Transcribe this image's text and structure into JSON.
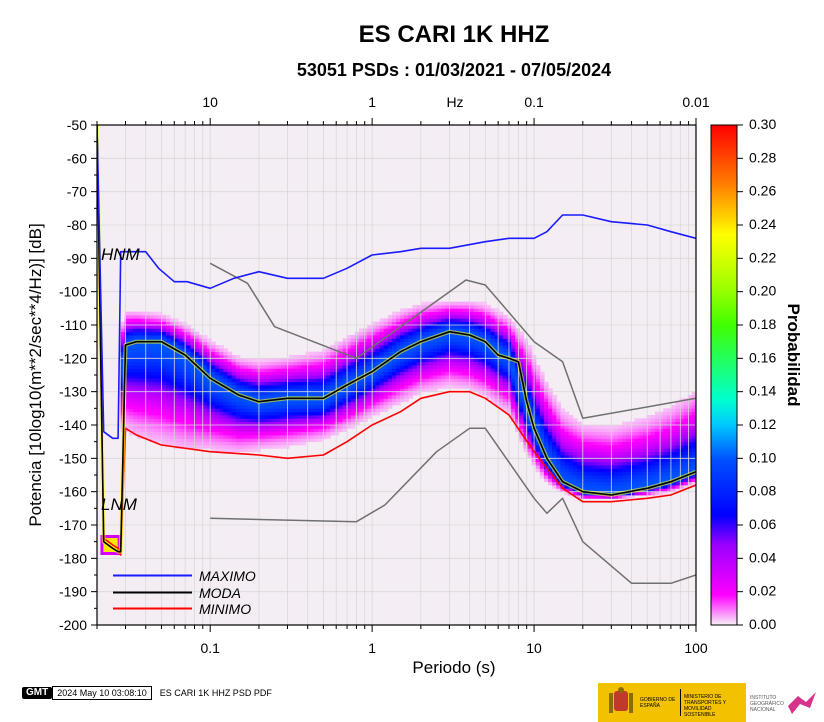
{
  "chart_data": {
    "type": "heatmap",
    "title": "ES CARI 1K HHZ",
    "subtitle": "53051 PSDs : 01/03/2021 - 07/05/2024",
    "xlabel": "Periodo (s)",
    "ylabel": "Potencia [10log10(m**2/sec**4/Hz)] [dB]",
    "top_axis_label": "Hz",
    "x_scale": "log",
    "xlim": [
      0.02,
      100
    ],
    "ylim": [
      -200,
      -50
    ],
    "x_ticks": [
      "0.1",
      "1",
      "10",
      "100"
    ],
    "x_tick_values": [
      0.1,
      1,
      10,
      100
    ],
    "top_ticks": [
      "10",
      "1",
      "0.1",
      "0.01"
    ],
    "top_tick_values": [
      0.1,
      1,
      10,
      100
    ],
    "y_ticks": [
      "-50",
      "-60",
      "-70",
      "-80",
      "-90",
      "-100",
      "-110",
      "-120",
      "-130",
      "-140",
      "-150",
      "-160",
      "-170",
      "-180",
      "-190",
      "-200"
    ],
    "y_tick_values": [
      -50,
      -60,
      -70,
      -80,
      -90,
      -100,
      -110,
      -120,
      -130,
      -140,
      -150,
      -160,
      -170,
      -180,
      -190,
      -200
    ],
    "colorbar": {
      "label": "Probabilidad",
      "range": [
        0,
        0.3
      ],
      "ticks": [
        "0.00",
        "0.02",
        "0.04",
        "0.06",
        "0.08",
        "0.10",
        "0.12",
        "0.14",
        "0.16",
        "0.18",
        "0.20",
        "0.22",
        "0.24",
        "0.26",
        "0.28",
        "0.30"
      ],
      "tick_values": [
        0,
        0.02,
        0.04,
        0.06,
        0.08,
        0.1,
        0.12,
        0.14,
        0.16,
        0.18,
        0.2,
        0.22,
        0.24,
        0.26,
        0.28,
        0.3
      ]
    },
    "annotations": [
      "HNM",
      "LNM"
    ],
    "legend": {
      "placement": "bottom-left",
      "entries": [
        "MAXIMO",
        "MODA",
        "MINIMO"
      ]
    },
    "series": [
      {
        "name": "MAXIMO",
        "color": "#1a1aff",
        "x": [
          0.02,
          0.022,
          0.025,
          0.027,
          0.028,
          0.031,
          0.04,
          0.048,
          0.06,
          0.072,
          0.1,
          0.14,
          0.2,
          0.3,
          0.5,
          0.7,
          1,
          1.5,
          2,
          3,
          5,
          7,
          10,
          12,
          15,
          20,
          30,
          50,
          70,
          100
        ],
        "y": [
          -50,
          -142,
          -144,
          -144,
          -88,
          -88,
          -88,
          -93,
          -97,
          -97,
          -99,
          -96,
          -94,
          -96,
          -96,
          -93,
          -89,
          -88,
          -87,
          -87,
          -85,
          -84,
          -84,
          -82,
          -77,
          -77,
          -79,
          -80,
          -82,
          -84
        ]
      },
      {
        "name": "MODA",
        "color": "#000000",
        "x": [
          0.02,
          0.022,
          0.025,
          0.027,
          0.028,
          0.03,
          0.035,
          0.05,
          0.07,
          0.1,
          0.15,
          0.2,
          0.3,
          0.5,
          0.7,
          1,
          1.5,
          2,
          3,
          4,
          5,
          6,
          7,
          8,
          9,
          10,
          12,
          15,
          20,
          30,
          50,
          70,
          100
        ],
        "y": [
          -50,
          -175,
          -177,
          -178,
          -178,
          -116,
          -115,
          -115,
          -119,
          -126,
          -131,
          -133,
          -132,
          -132,
          -128,
          -124,
          -118,
          -115,
          -112,
          -113,
          -115,
          -119,
          -120,
          -121,
          -133,
          -141,
          -150,
          -157,
          -160,
          -161,
          -159,
          -157,
          -154
        ]
      },
      {
        "name": "MINIMO",
        "color": "#ff0000",
        "x": [
          0.02,
          0.022,
          0.025,
          0.027,
          0.028,
          0.03,
          0.035,
          0.05,
          0.1,
          0.2,
          0.3,
          0.5,
          0.7,
          1,
          1.5,
          2,
          3,
          4,
          5,
          7,
          10,
          15,
          20,
          30,
          50,
          70,
          100
        ],
        "y": [
          -50,
          -174,
          -176,
          -177,
          -179,
          -141,
          -143,
          -146,
          -148,
          -149,
          -150,
          -149,
          -145,
          -140,
          -136,
          -132,
          -130,
          -130,
          -132,
          -137,
          -148,
          -159,
          -163,
          -163,
          -162,
          -161,
          -158
        ]
      },
      {
        "color": "#707070",
        "x": [
          0.1,
          0.17,
          0.25,
          0.8,
          3.8,
          5,
          10,
          15,
          20,
          100
        ],
        "y": [
          -91.5,
          -97.5,
          -110.5,
          -120,
          -96.5,
          -98,
          -115,
          -121,
          -138,
          -132
        ]
      },
      {
        "color": "#707070",
        "x": [
          0.1,
          0.8,
          1.2,
          2.5,
          4,
          5,
          10,
          12,
          15,
          20,
          40,
          70,
          100
        ],
        "y": [
          -168,
          -169,
          -164,
          -148,
          -141,
          -141,
          -162,
          -166.5,
          -162,
          -175,
          -187.5,
          -187.5,
          -185
        ]
      }
    ],
    "heatmap_band": {
      "x": [
        0.028,
        0.03,
        0.035,
        0.05,
        0.07,
        0.1,
        0.15,
        0.2,
        0.3,
        0.5,
        0.7,
        1,
        1.5,
        2,
        3,
        4,
        5,
        7,
        9,
        10,
        12,
        15,
        20,
        30,
        50,
        70,
        100
      ],
      "center": [
        -125,
        -116,
        -115,
        -115,
        -119,
        -126,
        -131,
        -133,
        -132,
        -132,
        -128,
        -124,
        -118,
        -115,
        -112,
        -113,
        -115,
        -120,
        -135,
        -141,
        -150,
        -157,
        -160,
        -161,
        -159,
        -157,
        -154
      ],
      "low": [
        -142,
        -141,
        -143,
        -145,
        -147,
        -147,
        -148,
        -147,
        -146,
        -144,
        -141,
        -137,
        -133,
        -130,
        -128,
        -129,
        -131,
        -136,
        -148,
        -152,
        -157,
        -160,
        -162,
        -162,
        -161,
        -160,
        -157
      ],
      "high": [
        -112,
        -106,
        -106,
        -107,
        -110,
        -115,
        -120,
        -121,
        -120,
        -118,
        -114,
        -110,
        -106,
        -104,
        -103,
        -103,
        -104,
        -108,
        -115,
        -120,
        -128,
        -136,
        -140,
        -141,
        -138,
        -135,
        -130
      ],
      "peak": 0.1
    },
    "inset_blob": {
      "x": [
        0.021,
        0.028
      ],
      "y": [
        -179,
        -173
      ],
      "peak": 0.24
    }
  },
  "footer": {
    "gmt_logo": "GMT",
    "timestamp": "2024 May 10 03:08:10",
    "caption": "ES CARI 1K HHZ PSD PDF"
  },
  "logos": {
    "gov_left": "GOBIERNO DE ESPAÑA",
    "gov_right": "MINISTERIO DE TRANSPORTES Y MOVILIDAD SOSTENIBLE",
    "ign": "INSTITUTO GEOGRÁFICO NACIONAL"
  }
}
